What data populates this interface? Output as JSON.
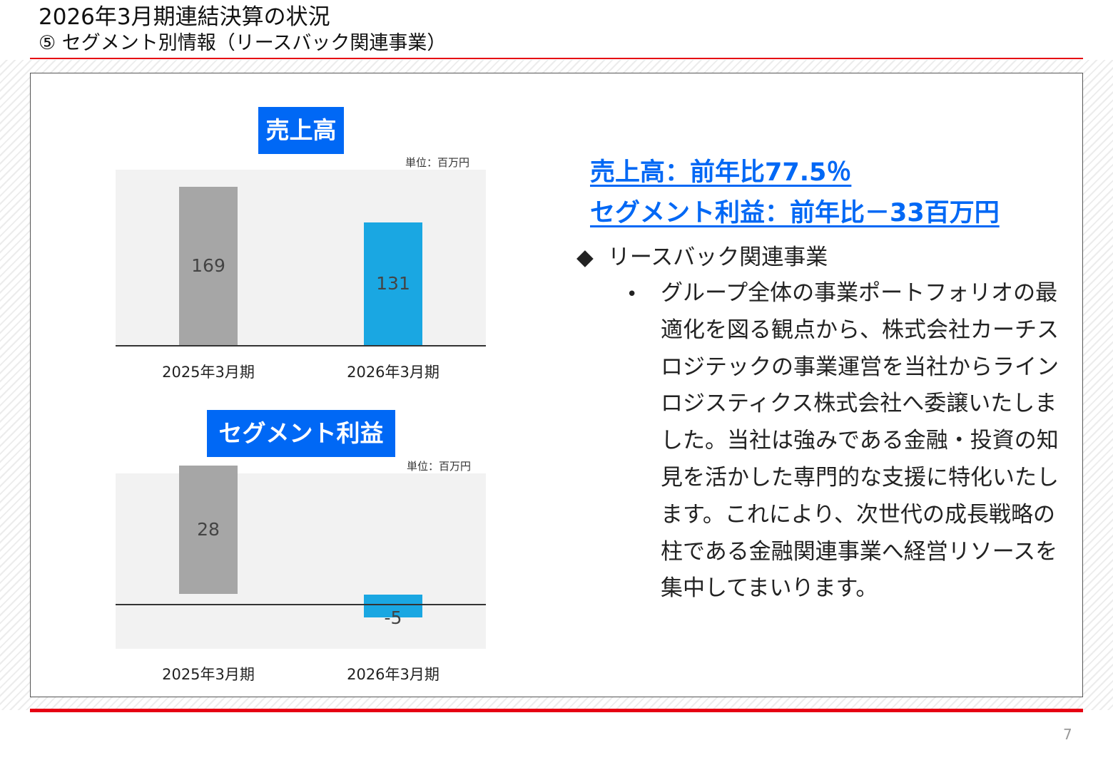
{
  "header": {
    "title": "2026年3月期連結決算の状況",
    "subtitle": "⑤ セグメント別情報（リースバック関連事業）"
  },
  "charts": {
    "sales": {
      "label": "売上高",
      "unit": "単位：百万円",
      "chart_data": {
        "type": "bar",
        "categories": [
          "2025年3月期",
          "2026年3月期"
        ],
        "values": [
          169,
          131
        ],
        "colors": [
          "#a6a6a6",
          "#1aa7e2"
        ],
        "ylim": [
          0,
          180
        ]
      }
    },
    "segment_profit": {
      "label": "セグメント利益",
      "unit": "単位：百万円",
      "chart_data": {
        "type": "bar",
        "categories": [
          "2025年3月期",
          "2026年3月期"
        ],
        "values": [
          28,
          -5
        ],
        "colors": [
          "#a6a6a6",
          "#1aa7e2"
        ],
        "ylim": [
          -10,
          30
        ]
      }
    }
  },
  "headlines": {
    "line1": "売上高：前年比77.5％",
    "line2": "セグメント利益：前年比－33百万円"
  },
  "bullets": {
    "section_marker": "◆",
    "section_title": "リースバック関連事業",
    "item_marker": "•",
    "item_text": "グループ全体の事業ポートフォリオの最適化を図る観点から、株式会社カーチスロジテックの事業運営を当社からラインロジスティクス株式会社へ委譲いたしました。当社は強みである金融・投資の知見を活かした専門的な支援に特化いたします。これにより、次世代の成長戦略の柱である金融関連事業へ経営リソースを集中してまいります。"
  },
  "footer": {
    "page_number": "7"
  },
  "colors": {
    "accent_red": "#e60012",
    "label_blue": "#0068f5"
  }
}
